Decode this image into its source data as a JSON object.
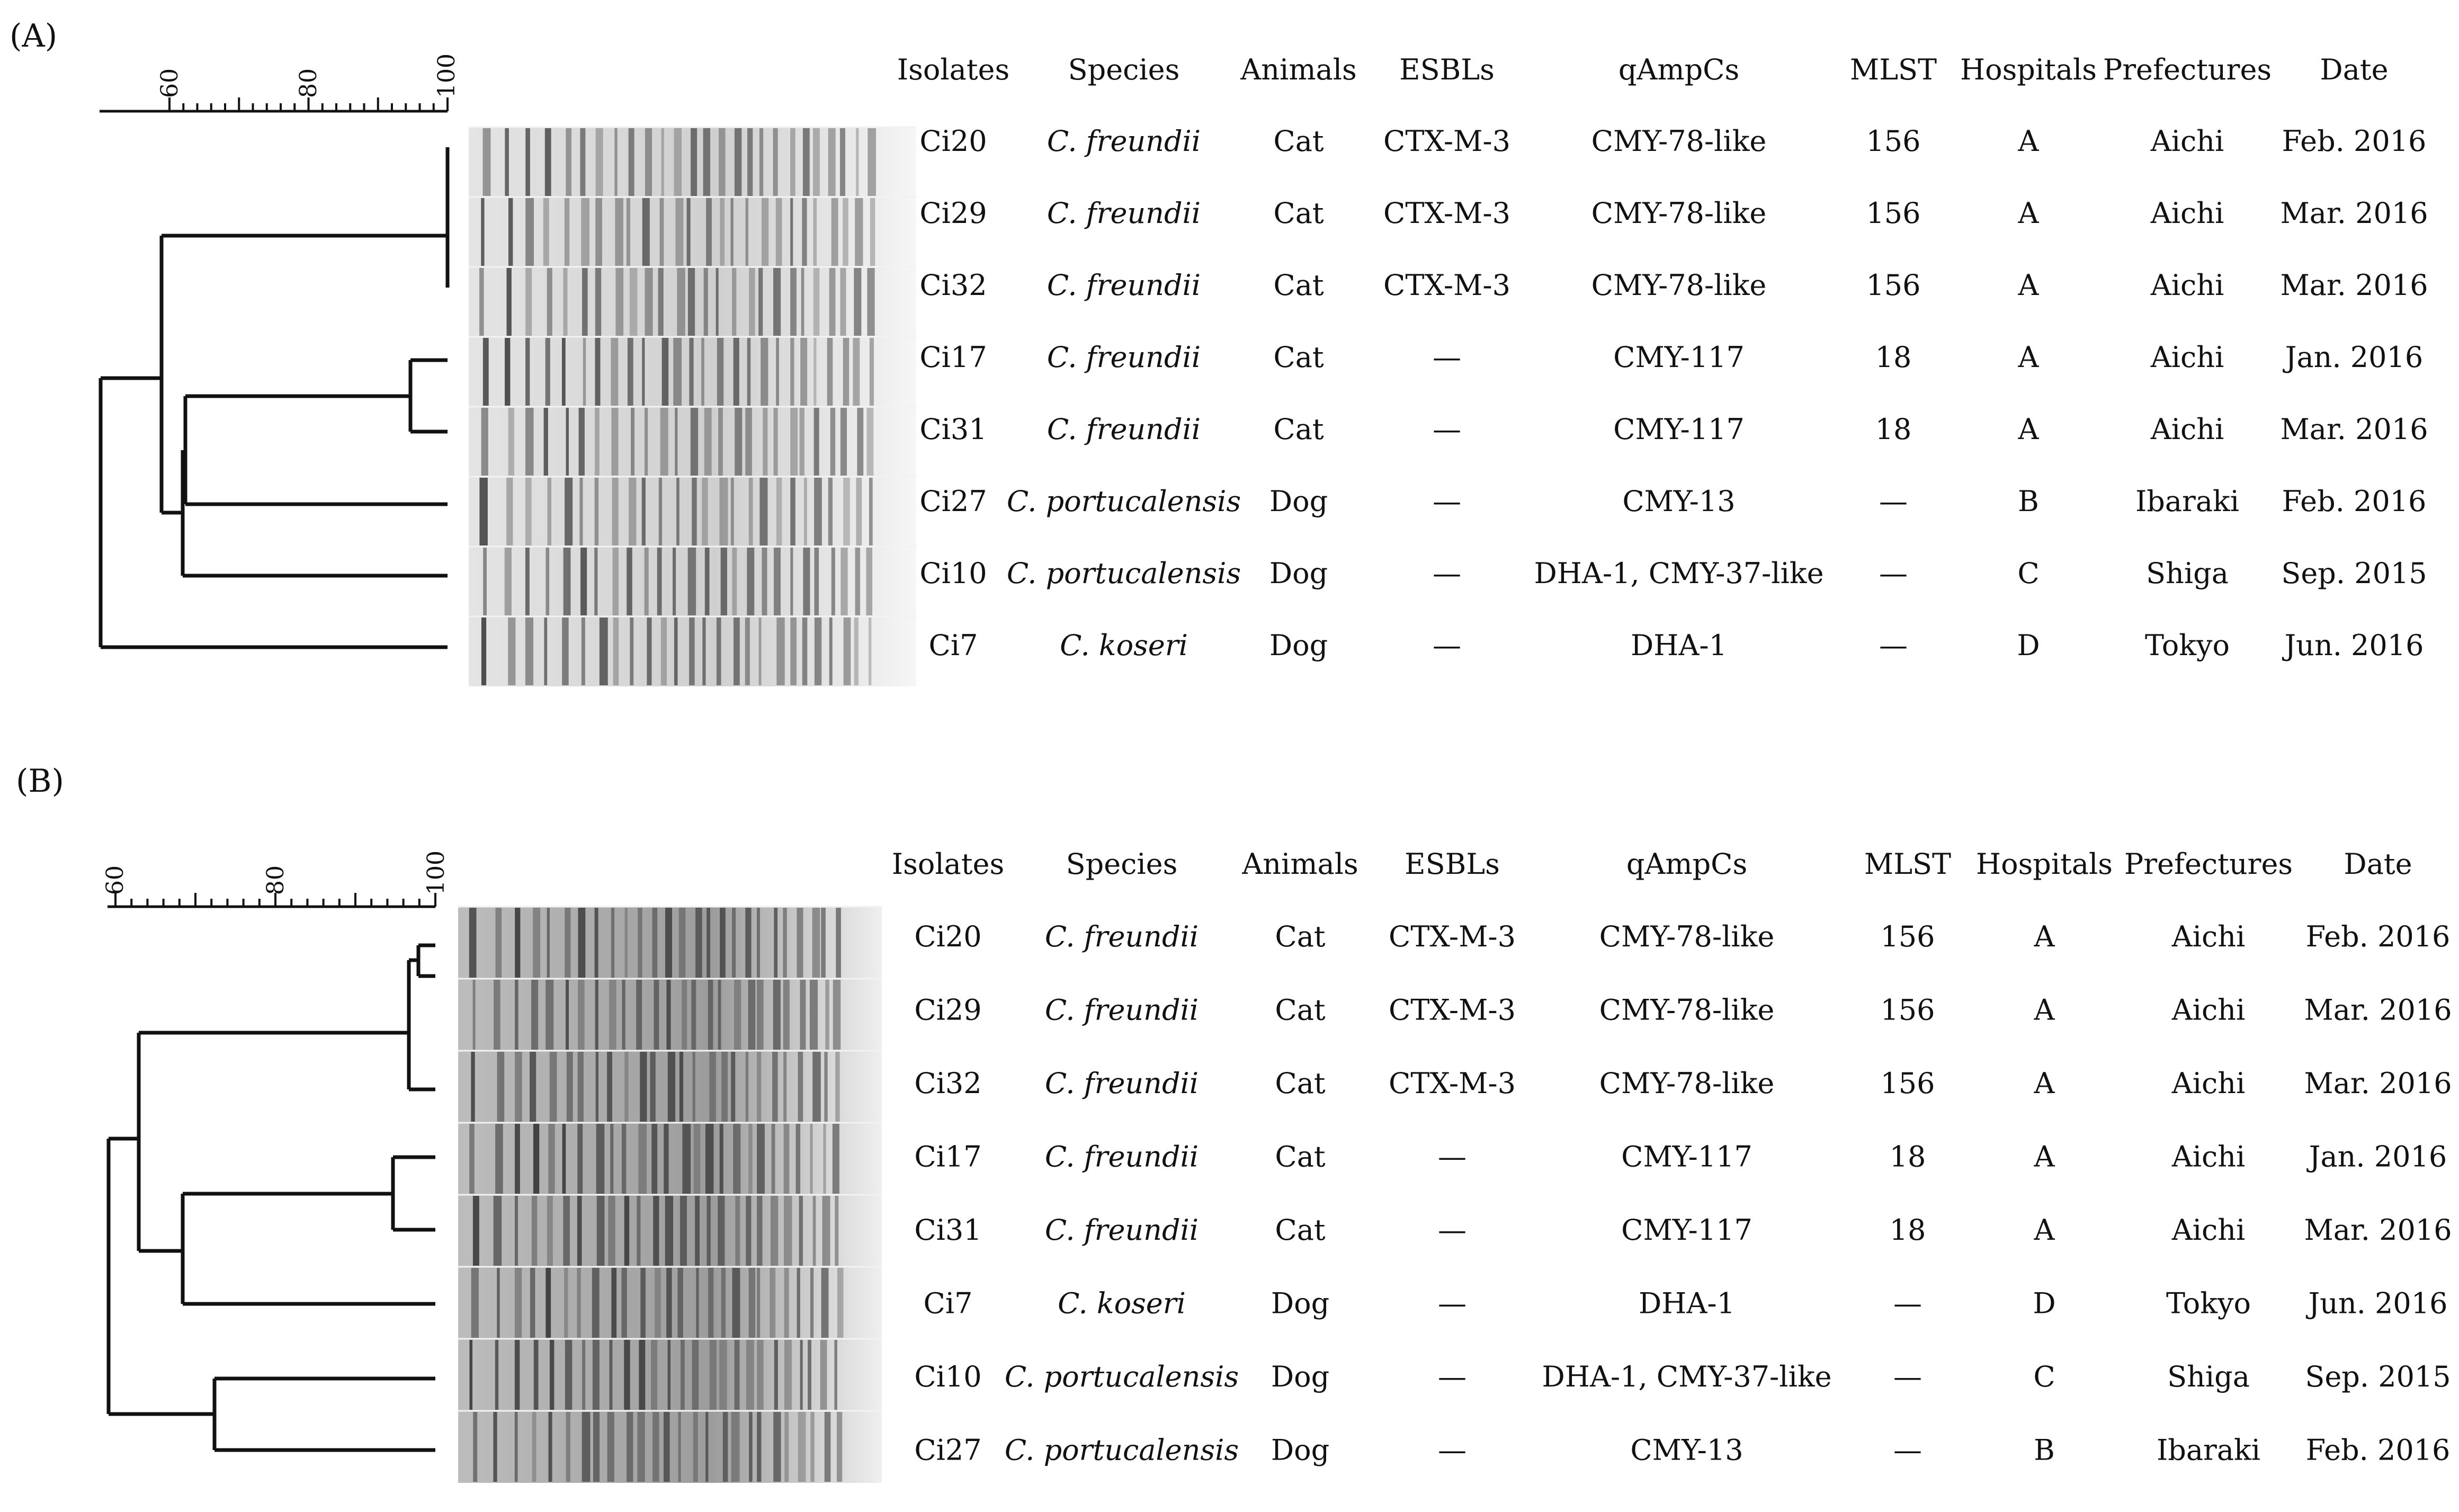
{
  "panels": [
    {
      "label": "(A)",
      "scale_ticks": [
        "60",
        "80",
        "100"
      ],
      "headers": [
        "Isolates",
        "Species",
        "Animals",
        "ESBLs",
        "qAmpCs",
        "MLST",
        "Hospitals",
        "Prefectures",
        "Date"
      ],
      "rows": [
        [
          "Ci20",
          "C. freundii",
          "Cat",
          "CTX-M-3",
          "CMY-78-like",
          "156",
          "A",
          "Aichi",
          "Feb. 2016"
        ],
        [
          "Ci29",
          "C. freundii",
          "Cat",
          "CTX-M-3",
          "CMY-78-like",
          "156",
          "A",
          "Aichi",
          "Mar. 2016"
        ],
        [
          "Ci32",
          "C. freundii",
          "Cat",
          "CTX-M-3",
          "CMY-78-like",
          "156",
          "A",
          "Aichi",
          "Mar. 2016"
        ],
        [
          "Ci17",
          "C. freundii",
          "Cat",
          "—",
          "CMY-117",
          "18",
          "A",
          "Aichi",
          "Jan. 2016"
        ],
        [
          "Ci31",
          "C. freundii",
          "Cat",
          "—",
          "CMY-117",
          "18",
          "A",
          "Aichi",
          "Mar. 2016"
        ],
        [
          "Ci27",
          "C. portucalensis",
          "Dog",
          "—",
          "CMY-13",
          "—",
          "B",
          "Ibaraki",
          "Feb. 2016"
        ],
        [
          "Ci10",
          "C. portucalensis",
          "Dog",
          "—",
          "DHA-1, CMY-37-like",
          "—",
          "C",
          "Shiga",
          "Sep. 2015"
        ],
        [
          "Ci7",
          "C. koseri",
          "Dog",
          "—",
          "DHA-1",
          "—",
          "D",
          "Tokyo",
          "Jun. 2016"
        ]
      ]
    },
    {
      "label": "(B)",
      "scale_ticks": [
        "60",
        "80",
        "100"
      ],
      "headers": [
        "Isolates",
        "Species",
        "Animals",
        "ESBLs",
        "qAmpCs",
        "MLST",
        "Hospitals",
        "Prefectures",
        "Date"
      ],
      "rows": [
        [
          "Ci20",
          "C. freundii",
          "Cat",
          "CTX-M-3",
          "CMY-78-like",
          "156",
          "A",
          "Aichi",
          "Feb. 2016"
        ],
        [
          "Ci29",
          "C. freundii",
          "Cat",
          "CTX-M-3",
          "CMY-78-like",
          "156",
          "A",
          "Aichi",
          "Mar. 2016"
        ],
        [
          "Ci32",
          "C. freundii",
          "Cat",
          "CTX-M-3",
          "CMY-78-like",
          "156",
          "A",
          "Aichi",
          "Mar. 2016"
        ],
        [
          "Ci17",
          "C. freundii",
          "Cat",
          "—",
          "CMY-117",
          "18",
          "A",
          "Aichi",
          "Jan. 2016"
        ],
        [
          "Ci31",
          "C. freundii",
          "Cat",
          "—",
          "CMY-117",
          "18",
          "A",
          "Aichi",
          "Mar. 2016"
        ],
        [
          "Ci7",
          "C. koseri",
          "Dog",
          "—",
          "DHA-1",
          "—",
          "D",
          "Tokyo",
          "Jun. 2016"
        ],
        [
          "Ci10",
          "C. portucalensis",
          "Dog",
          "—",
          "DHA-1, CMY-37-like",
          "—",
          "C",
          "Shiga",
          "Sep. 2015"
        ],
        [
          "Ci27",
          "C. portucalensis",
          "Dog",
          "—",
          "CMY-13",
          "—",
          "B",
          "Ibaraki",
          "Feb. 2016"
        ]
      ]
    }
  ]
}
